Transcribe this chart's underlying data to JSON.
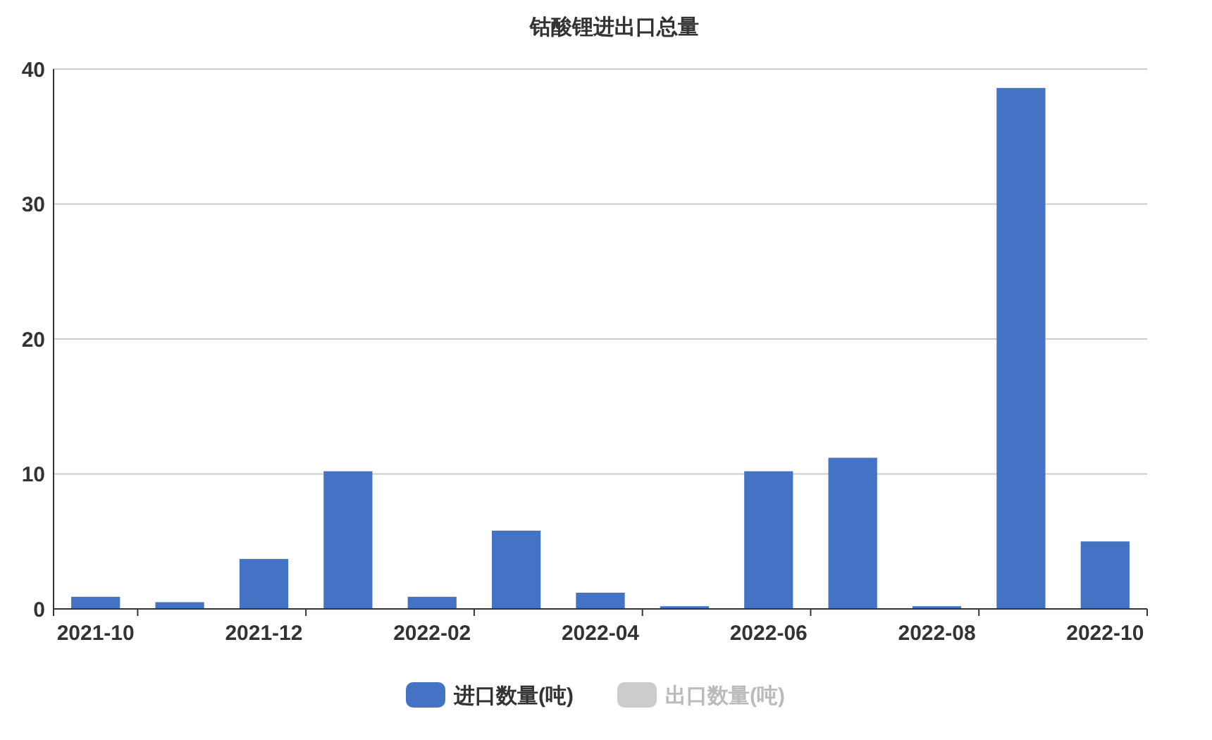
{
  "chart_data": {
    "type": "bar",
    "title": "钴酸锂进出口总量",
    "categories": [
      "2021-10",
      null,
      "2021-12",
      null,
      "2022-02",
      null,
      "2022-04",
      null,
      "2022-06",
      null,
      "2022-08",
      null,
      "2022-10"
    ],
    "series": [
      {
        "name": "进口数量(吨)",
        "color": "#4472c4",
        "values": [
          0.9,
          0.5,
          3.7,
          10.2,
          0.9,
          5.8,
          1.2,
          0.2,
          10.2,
          11.2,
          0.2,
          38.6,
          5.0
        ]
      },
      {
        "name": "出口数量(吨)",
        "color": "#cccccc",
        "values": [
          null,
          null,
          null,
          null,
          null,
          null,
          null,
          null,
          null,
          null,
          null,
          null,
          null
        ]
      }
    ],
    "ylim": [
      0,
      40
    ],
    "yticks": [
      0,
      10,
      20,
      30,
      40
    ],
    "grid": "y",
    "legend": "bottom"
  }
}
